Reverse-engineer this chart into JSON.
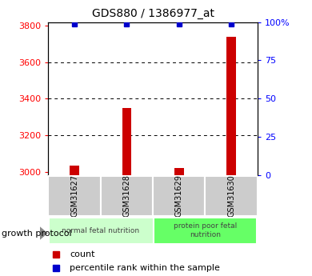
{
  "title": "GDS880 / 1386977_at",
  "samples": [
    "GSM31627",
    "GSM31628",
    "GSM31629",
    "GSM31630"
  ],
  "count_values": [
    3035,
    3350,
    3020,
    3740
  ],
  "percentile_values": [
    99,
    99,
    99,
    99
  ],
  "ylim_left": [
    2980,
    3820
  ],
  "ylim_right": [
    0,
    100
  ],
  "yticks_left": [
    3000,
    3200,
    3400,
    3600,
    3800
  ],
  "yticks_right": [
    0,
    25,
    50,
    75,
    100
  ],
  "ytick_labels_right": [
    "0",
    "25",
    "50",
    "75",
    "100%"
  ],
  "bar_color_red": "#cc0000",
  "bar_color_blue": "#0000cc",
  "group1_label": "normal fetal nutrition",
  "group2_label": "protein poor fetal\nnutrition",
  "group1_color": "#ccffcc",
  "group2_color": "#66ff66",
  "sample_box_color": "#cccccc",
  "growth_protocol_label": "growth protocol",
  "legend_count_label": "count",
  "legend_pct_label": "percentile rank within the sample"
}
